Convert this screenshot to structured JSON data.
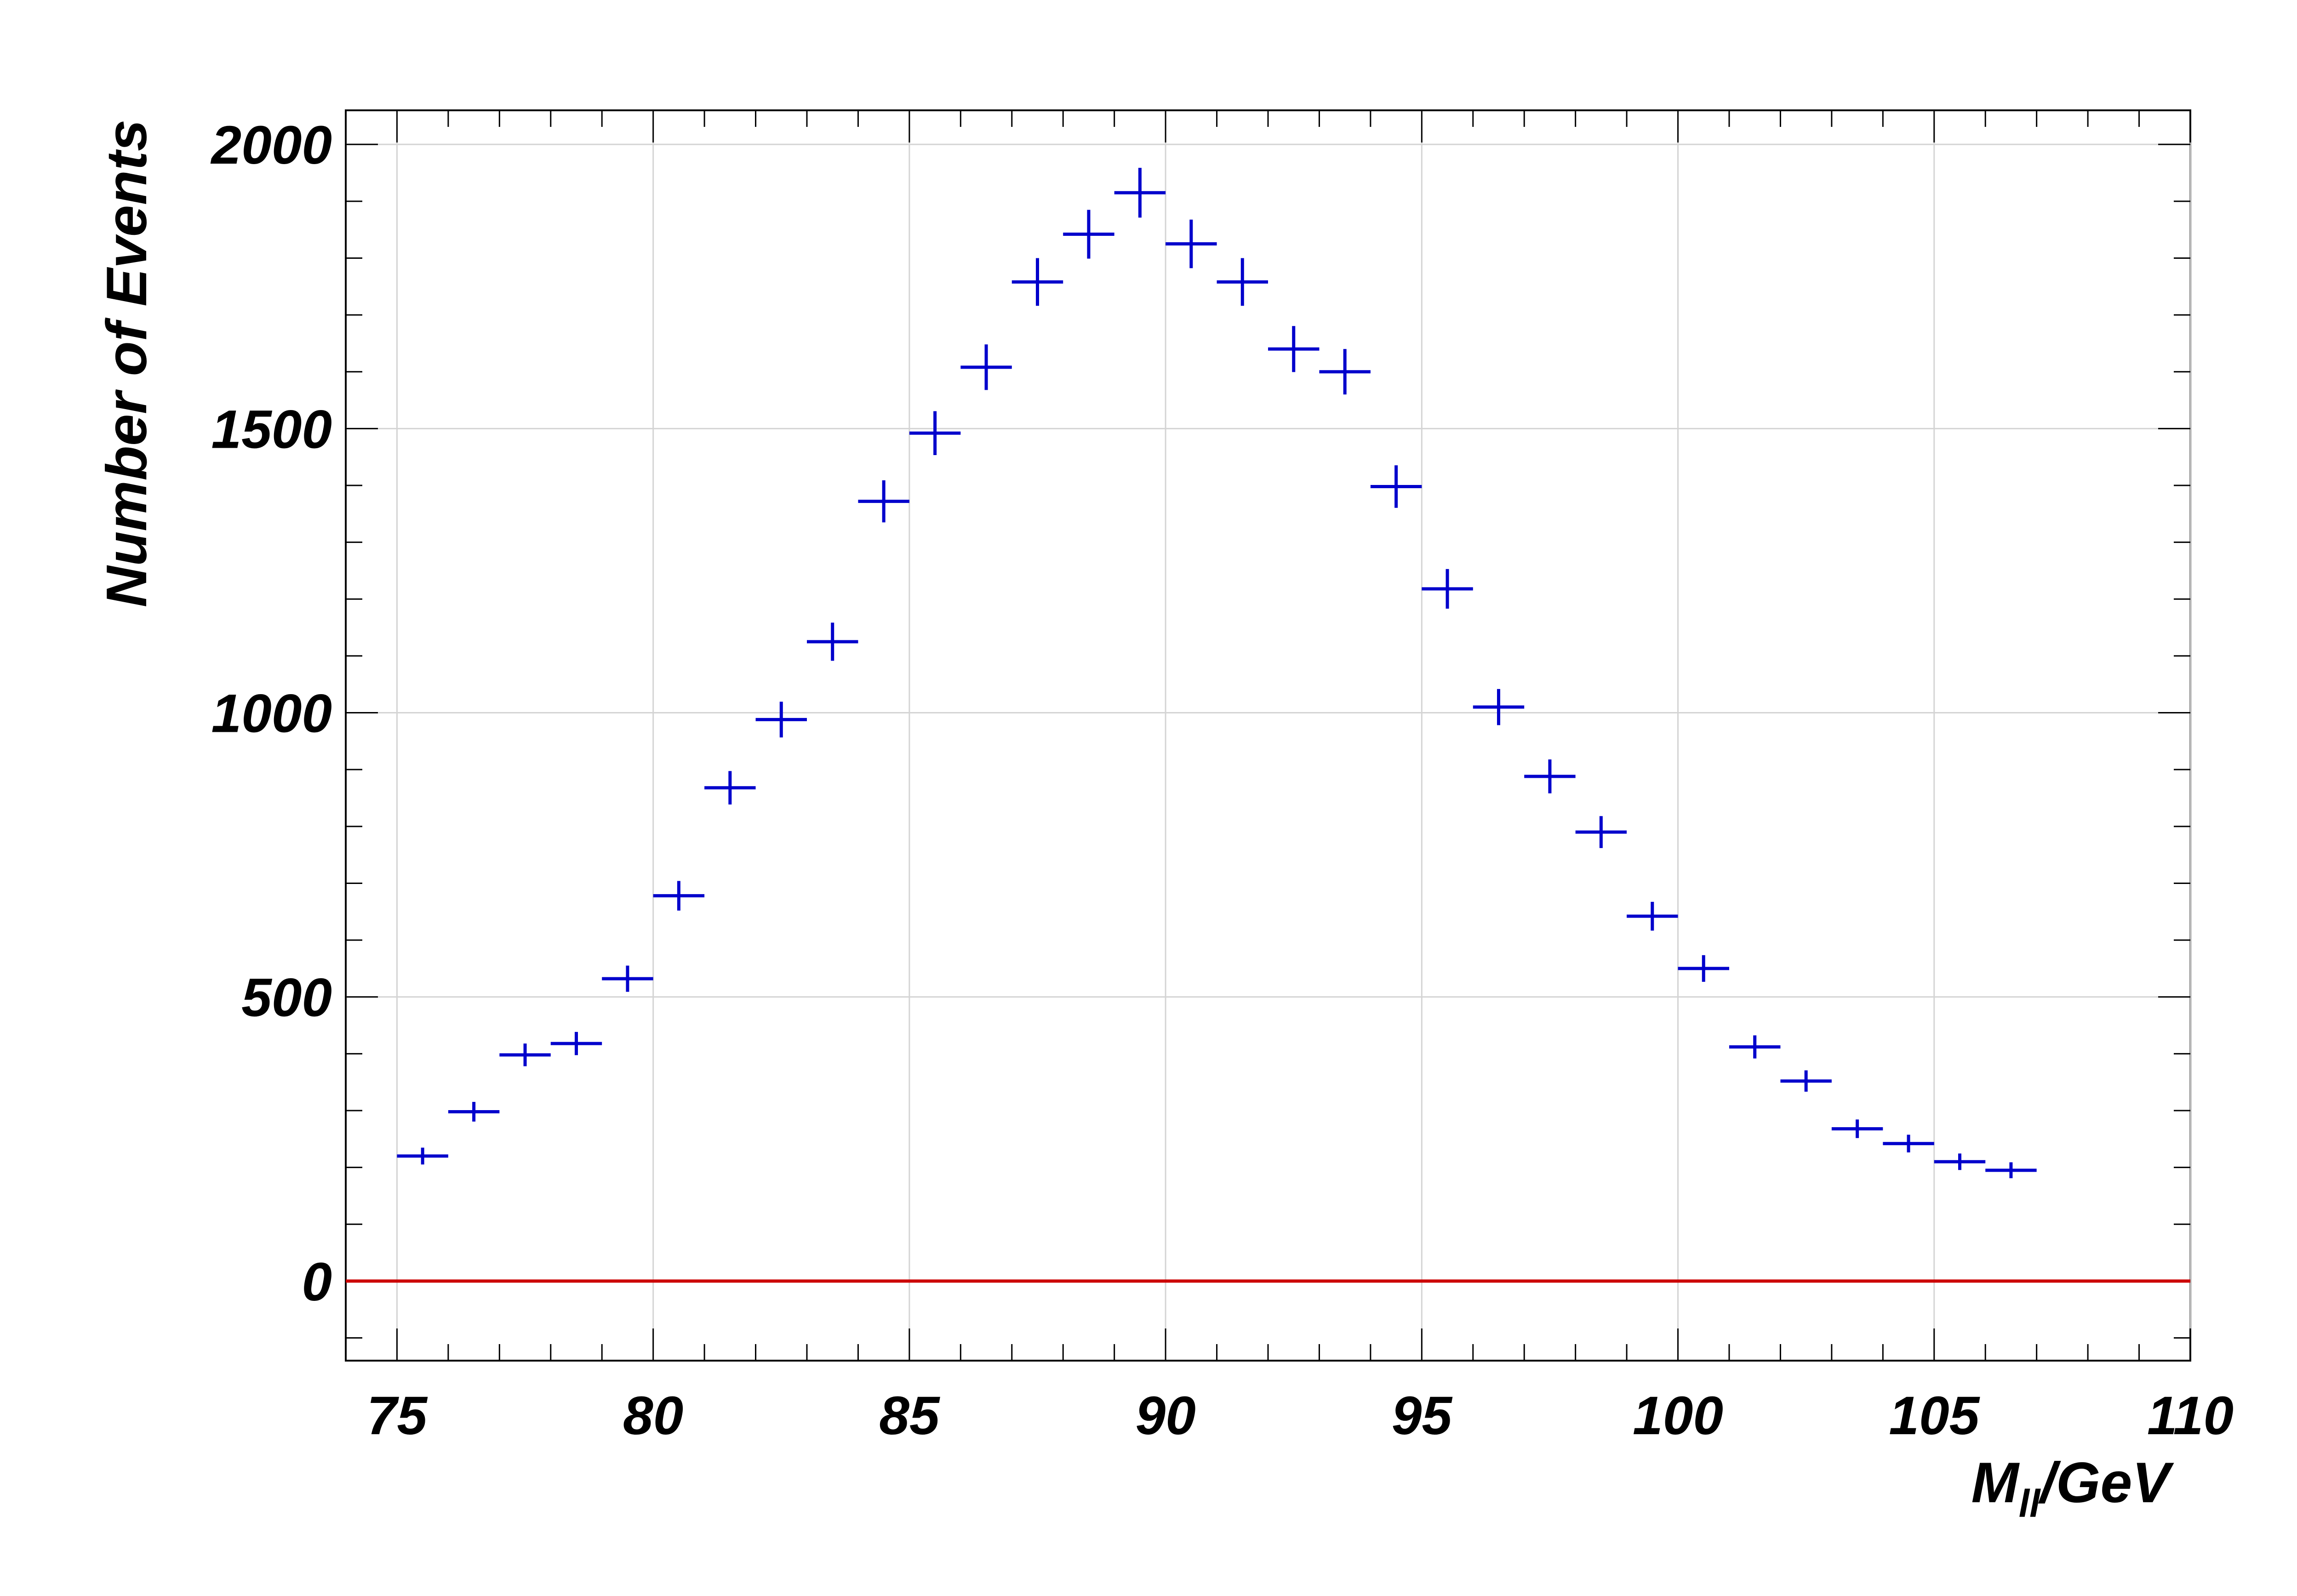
{
  "chart_data": {
    "type": "scatter",
    "title": "",
    "xlabel": "M",
    "xlabel_subscript": "ll",
    "xlabel_suffix": "/GeV",
    "ylabel": "Number of Events",
    "xlim": [
      74,
      110
    ],
    "ylim": [
      -140,
      2060
    ],
    "x_ticks": [
      75,
      80,
      85,
      90,
      95,
      100,
      105,
      110
    ],
    "y_ticks": [
      0,
      500,
      1000,
      1500,
      2000
    ],
    "x_tick_labels": [
      "75",
      "80",
      "85",
      "90",
      "95",
      "100",
      "105",
      "110"
    ],
    "y_tick_labels": [
      "0",
      "500",
      "1000",
      "1500",
      "2000"
    ],
    "grid": true,
    "legend": "none",
    "series": [
      {
        "type": "errorbar",
        "color": "#0000cc",
        "bin_width": 1,
        "x": [
          75.5,
          76.5,
          77.5,
          78.5,
          79.5,
          80.5,
          81.5,
          82.5,
          83.5,
          84.5,
          85.5,
          86.5,
          87.5,
          88.5,
          89.5,
          90.5,
          91.5,
          92.5,
          93.5,
          94.5,
          95.5,
          96.5,
          97.5,
          98.5,
          99.5,
          100.5,
          101.5,
          102.5,
          103.5,
          104.5,
          105.5,
          106.5
        ],
        "y": [
          220,
          298,
          398,
          418,
          532,
          678,
          868,
          988,
          1125,
          1372,
          1492,
          1608,
          1758,
          1842,
          1915,
          1825,
          1758,
          1640,
          1600,
          1398,
          1218,
          1010,
          888,
          790,
          642,
          550,
          412,
          352,
          268,
          242,
          210,
          195
        ]
      },
      {
        "type": "line",
        "color": "#cc0000",
        "x": [
          74,
          110
        ],
        "y": [
          0,
          0
        ]
      }
    ]
  }
}
